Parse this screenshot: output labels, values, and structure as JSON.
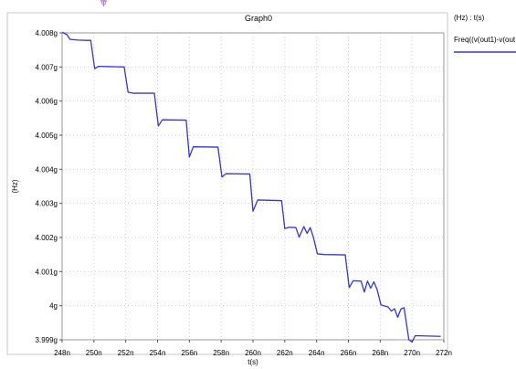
{
  "window": {
    "corner_icon": "crosshair-marker-icon"
  },
  "chart_data": {
    "type": "line",
    "title": "Graph0",
    "xlabel": "t(s)",
    "ylabel": "(Hz)",
    "xlim": [
      248,
      272
    ],
    "ylim": [
      3.999,
      4.008
    ],
    "x_unit_suffix": "n",
    "x_ticks": [
      248,
      250,
      252,
      254,
      256,
      258,
      260,
      262,
      264,
      266,
      268,
      270,
      272
    ],
    "x_tick_labels": [
      "248n",
      "250n",
      "252n",
      "254n",
      "256n",
      "258n",
      "260n",
      "262n",
      "264n",
      "266n",
      "268n",
      "270n",
      "272n"
    ],
    "y_ticks": [
      3.999,
      4.0,
      4.001,
      4.002,
      4.003,
      4.004,
      4.005,
      4.006,
      4.007,
      4.008
    ],
    "y_tick_labels": [
      "3.999g",
      "4g",
      "4.001g",
      "4.002g",
      "4.003g",
      "4.004g",
      "4.005g",
      "4.006g",
      "4.007g",
      "4.008g"
    ],
    "grid": true,
    "legend_position": "right",
    "legend_header": "(Hz) : t(s)",
    "series": [
      {
        "name": "Freq((v(out1)-v(out",
        "color": "#3333ee",
        "points": [
          [
            248.0,
            4.00802
          ],
          [
            248.3,
            4.00795
          ],
          [
            248.5,
            4.00781
          ],
          [
            249.0,
            4.00779
          ],
          [
            249.5,
            4.00778
          ],
          [
            249.8,
            4.00778
          ],
          [
            250.05,
            4.00695
          ],
          [
            250.3,
            4.00702
          ],
          [
            251.0,
            4.00701
          ],
          [
            251.9,
            4.007
          ],
          [
            252.15,
            4.00626
          ],
          [
            252.5,
            4.00623
          ],
          [
            253.8,
            4.00623
          ],
          [
            254.05,
            4.00527
          ],
          [
            254.3,
            4.00545
          ],
          [
            255.8,
            4.00544
          ],
          [
            256.0,
            4.00436
          ],
          [
            256.25,
            4.00466
          ],
          [
            257.8,
            4.00465
          ],
          [
            258.05,
            4.00377
          ],
          [
            258.3,
            4.00387
          ],
          [
            259.8,
            4.00386
          ],
          [
            260.0,
            4.00277
          ],
          [
            260.3,
            4.0031
          ],
          [
            261.8,
            4.00308
          ],
          [
            262.0,
            4.00226
          ],
          [
            262.3,
            4.0023
          ],
          [
            262.7,
            4.00229
          ],
          [
            262.9,
            4.00201
          ],
          [
            263.2,
            4.00232
          ],
          [
            263.4,
            4.00212
          ],
          [
            263.6,
            4.00229
          ],
          [
            263.8,
            4.002
          ],
          [
            264.05,
            4.00152
          ],
          [
            264.5,
            4.0015
          ],
          [
            265.8,
            4.00149
          ],
          [
            266.05,
            4.00053
          ],
          [
            266.3,
            4.00073
          ],
          [
            266.8,
            4.00072
          ],
          [
            267.0,
            4.0004
          ],
          [
            267.2,
            4.00072
          ],
          [
            267.4,
            4.00051
          ],
          [
            267.6,
            4.0007
          ],
          [
            267.8,
            4.00048
          ],
          [
            268.05,
            4.00002
          ],
          [
            268.5,
            3.99996
          ],
          [
            268.7,
            3.99984
          ],
          [
            268.9,
            3.99991
          ],
          [
            269.1,
            3.99966
          ],
          [
            269.3,
            3.9999
          ],
          [
            269.5,
            3.99994
          ],
          [
            269.8,
            3.999
          ],
          [
            270.0,
            3.99893
          ],
          [
            270.2,
            3.99912
          ],
          [
            271.8,
            3.9991
          ]
        ]
      }
    ]
  }
}
